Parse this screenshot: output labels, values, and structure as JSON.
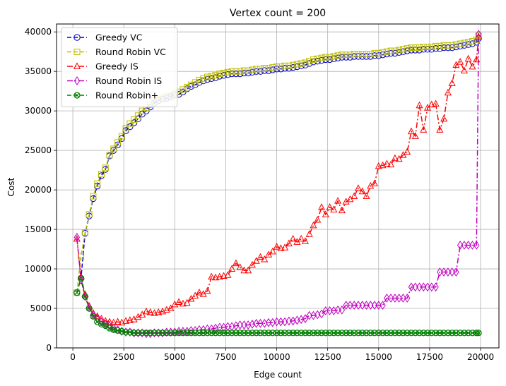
{
  "chart_data": {
    "type": "line",
    "title": "Vertex count = 200",
    "xlabel": "Edge count",
    "ylabel": "Cost",
    "xlim": [
      -800,
      20900
    ],
    "ylim": [
      0,
      41000
    ],
    "xticks": [
      0,
      2500,
      5000,
      7500,
      10000,
      12500,
      15000,
      17500,
      20000
    ],
    "yticks": [
      0,
      5000,
      10000,
      15000,
      20000,
      25000,
      30000,
      35000,
      40000
    ],
    "grid": true,
    "legend_position": "top-left",
    "series": [
      {
        "name": "Greedy VC",
        "color": "#0000cc",
        "marker": "circle",
        "dash": "dashed",
        "x": [
          200,
          400,
          600,
          800,
          1000,
          1200,
          1400,
          1600,
          1800,
          2000,
          2200,
          2400,
          2600,
          2800,
          3000,
          3200,
          3400,
          3600,
          3800,
          4000,
          4200,
          4400,
          4600,
          4800,
          5000,
          5200,
          5400,
          5600,
          5800,
          6000,
          6200,
          6400,
          6600,
          6800,
          7000,
          7200,
          7400,
          7600,
          7800,
          8000,
          8200,
          8400,
          8600,
          8800,
          9000,
          9200,
          9400,
          9600,
          9800,
          10000,
          10200,
          10400,
          10600,
          10800,
          11000,
          11200,
          11400,
          11600,
          11800,
          12000,
          12200,
          12400,
          12600,
          12800,
          13000,
          13200,
          13400,
          13600,
          13800,
          14000,
          14200,
          14400,
          14600,
          14800,
          15000,
          15200,
          15400,
          15600,
          15800,
          16000,
          16200,
          16400,
          16600,
          16800,
          17000,
          17200,
          17400,
          17600,
          17800,
          18000,
          18200,
          18400,
          18600,
          18800,
          19000,
          19200,
          19400,
          19600,
          19800,
          19900
        ],
        "y": [
          7000,
          8800,
          14500,
          16700,
          18900,
          20500,
          21800,
          22600,
          24300,
          25000,
          25700,
          26500,
          27500,
          28000,
          28500,
          29000,
          29600,
          30000,
          30500,
          31000,
          31300,
          31500,
          31600,
          31800,
          32000,
          32100,
          32400,
          32800,
          33100,
          33300,
          33600,
          33800,
          34000,
          34100,
          34200,
          34400,
          34500,
          34600,
          34700,
          34700,
          34700,
          34800,
          34800,
          34900,
          35000,
          35000,
          35100,
          35100,
          35200,
          35300,
          35300,
          35400,
          35400,
          35500,
          35600,
          35700,
          35800,
          36000,
          36200,
          36300,
          36400,
          36500,
          36500,
          36600,
          36700,
          36800,
          36800,
          36800,
          36900,
          36900,
          36900,
          36900,
          36900,
          37000,
          37000,
          37100,
          37200,
          37300,
          37300,
          37400,
          37500,
          37600,
          37700,
          37700,
          37700,
          37800,
          37800,
          37800,
          37900,
          37900,
          38000,
          38000,
          38000,
          38100,
          38200,
          38300,
          38400,
          38500,
          38700,
          39200
        ]
      },
      {
        "name": "Round Robin VC",
        "color": "#bfbf00",
        "marker": "square",
        "dash": "dashed",
        "x": [
          200,
          400,
          600,
          800,
          1000,
          1200,
          1400,
          1600,
          1800,
          2000,
          2200,
          2400,
          2600,
          2800,
          3000,
          3200,
          3400,
          3600,
          3800,
          4000,
          4200,
          4400,
          4600,
          4800,
          5000,
          5200,
          5400,
          5600,
          5800,
          6000,
          6200,
          6400,
          6600,
          6800,
          7000,
          7200,
          7400,
          7600,
          7800,
          8000,
          8200,
          8400,
          8600,
          8800,
          9000,
          9200,
          9400,
          9600,
          9800,
          10000,
          10200,
          10400,
          10600,
          10800,
          11000,
          11200,
          11400,
          11600,
          11800,
          12000,
          12200,
          12400,
          12600,
          12800,
          13000,
          13200,
          13400,
          13600,
          13800,
          14000,
          14200,
          14400,
          14600,
          14800,
          15000,
          15200,
          15400,
          15600,
          15800,
          16000,
          16200,
          16400,
          16600,
          16800,
          17000,
          17200,
          17400,
          17600,
          17800,
          18000,
          18200,
          18400,
          18600,
          18800,
          19000,
          19200,
          19400,
          19600,
          19800,
          19900
        ],
        "y": [
          7000,
          11600,
          14600,
          16900,
          19200,
          20800,
          22000,
          22800,
          24400,
          25200,
          26000,
          26800,
          27800,
          28400,
          28900,
          29400,
          30000,
          30400,
          30800,
          31200,
          31500,
          31700,
          31800,
          32000,
          32200,
          32400,
          32700,
          33000,
          33300,
          33600,
          33900,
          34100,
          34300,
          34400,
          34500,
          34700,
          34800,
          34900,
          35000,
          35000,
          35000,
          35100,
          35100,
          35200,
          35300,
          35300,
          35400,
          35400,
          35500,
          35600,
          35600,
          35700,
          35700,
          35800,
          35900,
          36000,
          36100,
          36300,
          36500,
          36600,
          36700,
          36800,
          36800,
          36900,
          37000,
          37100,
          37100,
          37100,
          37200,
          37200,
          37200,
          37200,
          37200,
          37300,
          37300,
          37400,
          37500,
          37600,
          37600,
          37700,
          37800,
          37900,
          38000,
          38000,
          38000,
          38100,
          38100,
          38100,
          38200,
          38200,
          38300,
          38300,
          38300,
          38400,
          38500,
          38600,
          38700,
          38800,
          39000,
          39500
        ]
      },
      {
        "name": "Greedy IS",
        "color": "#ff0000",
        "marker": "triangle",
        "dash": "dashdot",
        "x": [
          200,
          400,
          600,
          800,
          1000,
          1200,
          1400,
          1600,
          1800,
          2000,
          2200,
          2400,
          2600,
          2800,
          3000,
          3200,
          3400,
          3600,
          3800,
          4000,
          4200,
          4400,
          4600,
          4800,
          5000,
          5200,
          5400,
          5600,
          5800,
          6000,
          6200,
          6400,
          6600,
          6800,
          7000,
          7200,
          7400,
          7600,
          7800,
          8000,
          8200,
          8400,
          8600,
          8800,
          9000,
          9200,
          9400,
          9600,
          9800,
          10000,
          10200,
          10400,
          10600,
          10800,
          11000,
          11200,
          11400,
          11600,
          11800,
          12000,
          12200,
          12400,
          12600,
          12800,
          13000,
          13200,
          13400,
          13600,
          13800,
          14000,
          14200,
          14400,
          14600,
          14800,
          15000,
          15200,
          15400,
          15600,
          15800,
          16000,
          16200,
          16400,
          16600,
          16800,
          17000,
          17200,
          17400,
          17600,
          17800,
          18000,
          18200,
          18400,
          18600,
          18800,
          19000,
          19200,
          19400,
          19600,
          19800,
          19900
        ],
        "y": [
          13800,
          9000,
          6800,
          5300,
          4400,
          4000,
          3700,
          3400,
          3300,
          3200,
          3300,
          3200,
          3400,
          3500,
          3600,
          3900,
          4200,
          4600,
          4500,
          4400,
          4500,
          4600,
          4800,
          5000,
          5500,
          5800,
          5600,
          5700,
          6200,
          6600,
          7000,
          6800,
          7200,
          9000,
          8900,
          9000,
          9100,
          9200,
          10000,
          10700,
          10200,
          9800,
          9800,
          10500,
          11000,
          11500,
          11200,
          11800,
          12200,
          12800,
          12600,
          12700,
          13200,
          13800,
          13400,
          13800,
          13500,
          14400,
          15500,
          16200,
          17800,
          16900,
          17800,
          17500,
          18600,
          17400,
          18500,
          18800,
          19200,
          20200,
          19800,
          19200,
          20500,
          20800,
          23000,
          23100,
          23300,
          23200,
          24000,
          23900,
          24400,
          24800,
          27400,
          26800,
          30700,
          27600,
          30400,
          30800,
          30900,
          27600,
          29000,
          32300,
          33500,
          35800,
          36200,
          35100,
          36600,
          35600,
          36500,
          39400
        ]
      },
      {
        "name": "Round Robin IS",
        "color": "#bf00bf",
        "marker": "diamond",
        "dash": "dashdot",
        "x": [
          200,
          400,
          600,
          800,
          1000,
          1200,
          1400,
          1600,
          1800,
          2000,
          2200,
          2400,
          2600,
          2800,
          3000,
          3200,
          3400,
          3600,
          3800,
          4000,
          4200,
          4400,
          4600,
          4800,
          5000,
          5200,
          5400,
          5600,
          5800,
          6000,
          6200,
          6400,
          6600,
          6800,
          7000,
          7200,
          7400,
          7600,
          7800,
          8000,
          8200,
          8400,
          8600,
          8800,
          9000,
          9200,
          9400,
          9600,
          9800,
          10000,
          10200,
          10400,
          10600,
          10800,
          11000,
          11200,
          11400,
          11600,
          11800,
          12000,
          12200,
          12400,
          12600,
          12800,
          13000,
          13200,
          13400,
          13600,
          13800,
          14000,
          14200,
          14400,
          14600,
          14800,
          15000,
          15200,
          15400,
          15600,
          15800,
          16000,
          16200,
          16400,
          16600,
          16800,
          17000,
          17200,
          17400,
          17600,
          17800,
          18000,
          18200,
          18400,
          18600,
          18800,
          19000,
          19200,
          19400,
          19600,
          19800,
          19900
        ],
        "y": [
          14000,
          8600,
          6500,
          5100,
          4200,
          3700,
          3300,
          3000,
          2800,
          2500,
          2300,
          2100,
          2000,
          2000,
          1900,
          1900,
          1900,
          1800,
          1800,
          1900,
          1900,
          1900,
          2000,
          2000,
          2000,
          2100,
          2100,
          2100,
          2200,
          2200,
          2300,
          2300,
          2400,
          2400,
          2500,
          2600,
          2600,
          2700,
          2700,
          2800,
          2900,
          2900,
          2900,
          3000,
          3100,
          3100,
          3100,
          3200,
          3200,
          3300,
          3300,
          3300,
          3400,
          3400,
          3500,
          3600,
          3700,
          4100,
          4100,
          4200,
          4300,
          4700,
          4700,
          4700,
          4800,
          4800,
          5400,
          5400,
          5400,
          5400,
          5400,
          5400,
          5400,
          5400,
          5400,
          5400,
          6300,
          6300,
          6300,
          6300,
          6300,
          6300,
          7700,
          7700,
          7700,
          7700,
          7700,
          7700,
          7700,
          9600,
          9600,
          9600,
          9600,
          9600,
          13000,
          13000,
          13000,
          13000,
          13000,
          39700
        ]
      },
      {
        "name": "Round Robin+",
        "color": "#008000",
        "marker": "x-circle",
        "dash": "dashed",
        "x": [
          200,
          400,
          600,
          800,
          1000,
          1200,
          1400,
          1600,
          1800,
          2000,
          2200,
          2400,
          2600,
          2800,
          3000,
          3200,
          3400,
          3600,
          3800,
          4000,
          4200,
          4400,
          4600,
          4800,
          5000,
          5200,
          5400,
          5600,
          5800,
          6000,
          6200,
          6400,
          6600,
          6800,
          7000,
          7200,
          7400,
          7600,
          7800,
          8000,
          8200,
          8400,
          8600,
          8800,
          9000,
          9200,
          9400,
          9600,
          9800,
          10000,
          10200,
          10400,
          10600,
          10800,
          11000,
          11200,
          11400,
          11600,
          11800,
          12000,
          12200,
          12400,
          12600,
          12800,
          13000,
          13200,
          13400,
          13600,
          13800,
          14000,
          14200,
          14400,
          14600,
          14800,
          15000,
          15200,
          15400,
          15600,
          15800,
          16000,
          16200,
          16400,
          16600,
          16800,
          17000,
          17200,
          17400,
          17600,
          17800,
          18000,
          18200,
          18400,
          18600,
          18800,
          19000,
          19200,
          19400,
          19600,
          19800,
          19900
        ],
        "y": [
          7000,
          8800,
          6500,
          5000,
          4000,
          3300,
          3000,
          2800,
          2500,
          2300,
          2200,
          2100,
          2000,
          2000,
          1900,
          1900,
          1900,
          1900,
          1900,
          1900,
          1900,
          1900,
          1900,
          1900,
          1900,
          1900,
          1900,
          1900,
          1900,
          1900,
          1900,
          1900,
          1900,
          1900,
          1900,
          1900,
          1900,
          1900,
          1900,
          1900,
          1900,
          1900,
          1900,
          1900,
          1900,
          1900,
          1900,
          1900,
          1900,
          1900,
          1900,
          1900,
          1900,
          1900,
          1900,
          1900,
          1900,
          1900,
          1900,
          1900,
          1900,
          1900,
          1900,
          1900,
          1900,
          1900,
          1900,
          1900,
          1900,
          1900,
          1900,
          1900,
          1900,
          1900,
          1900,
          1900,
          1900,
          1900,
          1900,
          1900,
          1900,
          1900,
          1900,
          1900,
          1900,
          1900,
          1900,
          1900,
          1900,
          1900,
          1900,
          1900,
          1900,
          1900,
          1900,
          1900,
          1900,
          1900,
          1900,
          1900
        ]
      }
    ]
  }
}
